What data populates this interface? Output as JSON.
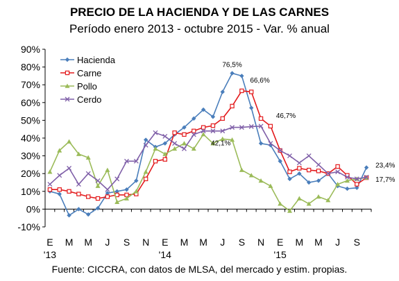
{
  "chart_data": {
    "type": "line",
    "title": "PRECIO DE LA HACIENDA Y DE LAS CARNES",
    "subtitle": "Período enero 2013 - octubre 2015 - Var. % anual",
    "source": "Fuente: CICCRA, con datos de MLSA, del mercado y estim. propias.",
    "ylim": [
      -10,
      90
    ],
    "yticks": [
      "-10%",
      "0%",
      "10%",
      "20%",
      "30%",
      "40%",
      "50%",
      "60%",
      "70%",
      "80%",
      "90%"
    ],
    "xtick_labels": [
      "E",
      "M",
      "M",
      "J",
      "S",
      "N",
      "E",
      "M",
      "M",
      "J",
      "S",
      "N",
      "E",
      "M",
      "M",
      "J",
      "S"
    ],
    "year_labels": [
      "'13",
      "'14",
      "'15"
    ],
    "legend_position": "top-left",
    "series": [
      {
        "name": "Hacienda",
        "color": "#4a7ebb",
        "marker": "diamond",
        "values": [
          10,
          8.5,
          -3.5,
          0,
          -3,
          0.5,
          9,
          10,
          11,
          16,
          39,
          35,
          37,
          42,
          46,
          51,
          56,
          52,
          66,
          76.5,
          75,
          57,
          37,
          36,
          27,
          17,
          20,
          15,
          16,
          20,
          13,
          11.5,
          12,
          23.4
        ]
      },
      {
        "name": "Carne",
        "color": "#e31a1c",
        "marker": "square",
        "values": [
          11,
          11,
          10,
          8.5,
          7,
          6,
          7,
          8,
          8,
          8.5,
          17,
          27,
          28,
          43,
          42,
          44,
          46,
          47,
          51,
          58,
          66.6,
          66,
          51,
          46.7,
          33,
          21,
          23,
          22,
          21.5,
          20,
          24,
          19,
          14,
          17.7
        ]
      },
      {
        "name": "Pollo",
        "color": "#9bbb59",
        "marker": "triangle",
        "values": [
          21,
          33,
          38,
          31,
          29,
          13,
          22,
          4,
          6,
          10,
          21,
          34,
          31,
          34,
          37,
          34,
          42.1,
          37,
          39.5,
          39,
          22,
          19,
          16,
          13,
          3,
          -1,
          6,
          3,
          7,
          5,
          14,
          16,
          17,
          17.7
        ]
      },
      {
        "name": "Cerdo",
        "color": "#7f5fa8",
        "marker": "x",
        "values": [
          14,
          19,
          23,
          14,
          20,
          16,
          11,
          17,
          27,
          27,
          36,
          43,
          41,
          37,
          34,
          42,
          44,
          44,
          44,
          46,
          46,
          46.5,
          46.7,
          37,
          33,
          30,
          26,
          30,
          25,
          20,
          21,
          18,
          17,
          18
        ]
      }
    ],
    "annotations": [
      {
        "text": "76,5%",
        "index": 19,
        "value": 76.5
      },
      {
        "text": "66,6%",
        "index": 20,
        "value": 66.6
      },
      {
        "text": "46,7%",
        "index": 23,
        "value": 46.7
      },
      {
        "text": "42,1%",
        "index": 16,
        "value": 42.1
      },
      {
        "text": "23,4%",
        "index": 33,
        "value": 23.4
      },
      {
        "text": "17,7%",
        "index": 33,
        "value": 17.7
      }
    ]
  }
}
